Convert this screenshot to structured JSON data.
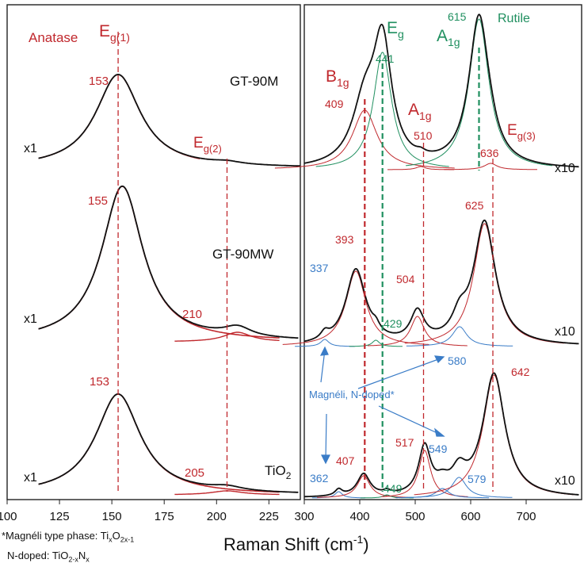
{
  "chart_data": {
    "type": "line",
    "xlabel": "Raman Shift (cm",
    "xlabel_sup": "-1",
    "xlabel_end": ")",
    "left_panel": {
      "xlim": [
        100,
        240
      ],
      "xticks": [
        "100",
        "125",
        "150",
        "175",
        "200",
        "225"
      ],
      "phase_label": "Anatase",
      "eg1_label": "E",
      "eg1_sub": "g(1)",
      "eg2_label": "E",
      "eg2_sub": "g(2)",
      "traces": [
        {
          "name": "GT-90M",
          "scale": "x1",
          "peaks": [
            {
              "pos": 153,
              "label": "153"
            }
          ]
        },
        {
          "name": "GT-90MW",
          "scale": "x1",
          "peaks": [
            {
              "pos": 155,
              "label": "155"
            },
            {
              "pos": 210,
              "label": "210"
            }
          ]
        },
        {
          "name": "TiO",
          "name_sub": "2",
          "scale": "x1",
          "peaks": [
            {
              "pos": 153,
              "label": "153"
            },
            {
              "pos": 205,
              "label": "205"
            }
          ]
        }
      ]
    },
    "right_panel": {
      "xlim": [
        300,
        800
      ],
      "xticks": [
        "300",
        "400",
        "500",
        "600",
        "700"
      ],
      "phase_label": "Rutile",
      "modes": [
        {
          "label": "B",
          "sub": "1g",
          "color": "red"
        },
        {
          "label": "E",
          "sub": "g",
          "color": "green"
        },
        {
          "label": "A",
          "sub": "1g",
          "color": "red"
        },
        {
          "label": "A",
          "sub": "1g",
          "color": "green"
        },
        {
          "label": "E",
          "sub": "g(3)",
          "color": "red"
        }
      ],
      "traces": [
        {
          "name": "GT-90M",
          "scale": "x10",
          "peaks": [
            "409",
            "441",
            "510",
            "615",
            "636"
          ]
        },
        {
          "name": "GT-90MW",
          "scale": "x10",
          "peaks": [
            "337",
            "393",
            "429",
            "504",
            "580",
            "625"
          ]
        },
        {
          "name": "TiO2",
          "scale": "x10",
          "peaks": [
            "362",
            "407",
            "449",
            "517",
            "549",
            "579",
            "642"
          ]
        }
      ],
      "annotation": "Magnéli, N-doped*"
    }
  },
  "footnote1": {
    "text": "*Magnéli type phase: Ti",
    "x": "x",
    "o": "O",
    "sub2": "2x-1"
  },
  "footnote2": {
    "text": "N-doped: TiO",
    "sub1": "2-x",
    "n": "N",
    "sub2": "x"
  },
  "colors": {
    "anatase": "#c0282d",
    "rutile": "#1f8f5f",
    "magneli": "#3a7cc7",
    "total": "#111111"
  }
}
